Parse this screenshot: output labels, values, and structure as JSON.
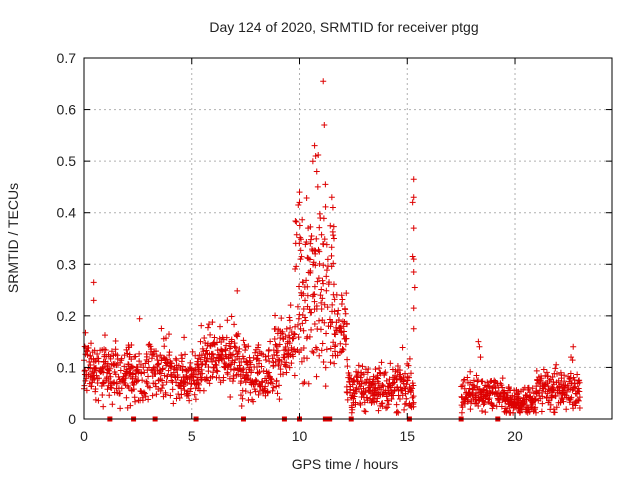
{
  "chart_data": {
    "type": "scatter",
    "title": "Day 124 of 2020, SRMTID for receiver ptgg",
    "xlabel": "GPS time / hours",
    "ylabel": "SRMTID / TECUs",
    "xlim": [
      0,
      24.5
    ],
    "ylim": [
      0,
      0.7
    ],
    "xticks": [
      "0",
      "5",
      "10",
      "15",
      "20"
    ],
    "yticks": [
      "0",
      "0.1",
      "0.2",
      "0.3",
      "0.4",
      "0.5",
      "0.6",
      "0.7"
    ],
    "grid": true,
    "marker": "+",
    "color": "#dd0000",
    "segments": [
      {
        "x_start": 0.0,
        "x_end": 1.0,
        "base": 0.095,
        "spread": 0.03
      },
      {
        "x_start": 1.0,
        "x_end": 3.0,
        "base": 0.085,
        "spread": 0.03
      },
      {
        "x_start": 3.0,
        "x_end": 4.0,
        "base": 0.1,
        "spread": 0.035
      },
      {
        "x_start": 4.0,
        "x_end": 5.3,
        "base": 0.08,
        "spread": 0.025
      },
      {
        "x_start": 5.3,
        "x_end": 7.2,
        "base": 0.12,
        "spread": 0.035
      },
      {
        "x_start": 7.2,
        "x_end": 8.8,
        "base": 0.095,
        "spread": 0.03
      },
      {
        "x_start": 8.8,
        "x_end": 9.8,
        "base": 0.13,
        "spread": 0.04
      },
      {
        "x_start": 9.8,
        "x_end": 11.6,
        "base": 0.25,
        "spread": 0.09
      },
      {
        "x_start": 11.6,
        "x_end": 12.2,
        "base": 0.17,
        "spread": 0.04
      },
      {
        "x_start": 12.2,
        "x_end": 15.3,
        "base": 0.06,
        "spread": 0.025
      },
      {
        "x_start": 17.5,
        "x_end": 19.5,
        "base": 0.05,
        "spread": 0.018
      },
      {
        "x_start": 19.5,
        "x_end": 21.0,
        "base": 0.035,
        "spread": 0.015
      },
      {
        "x_start": 21.0,
        "x_end": 23.0,
        "base": 0.055,
        "spread": 0.02
      }
    ],
    "highlights": [
      {
        "x": 0.45,
        "y": 0.265
      },
      {
        "x": 0.45,
        "y": 0.23
      },
      {
        "x": 10.0,
        "y": 0.44
      },
      {
        "x": 10.0,
        "y": 0.42
      },
      {
        "x": 10.5,
        "y": 0.34
      },
      {
        "x": 10.7,
        "y": 0.53
      },
      {
        "x": 10.75,
        "y": 0.51
      },
      {
        "x": 10.8,
        "y": 0.48
      },
      {
        "x": 10.85,
        "y": 0.45
      },
      {
        "x": 11.1,
        "y": 0.655
      },
      {
        "x": 11.15,
        "y": 0.57
      },
      {
        "x": 11.2,
        "y": 0.455
      },
      {
        "x": 11.5,
        "y": 0.43
      },
      {
        "x": 11.55,
        "y": 0.41
      },
      {
        "x": 11.6,
        "y": 0.35
      },
      {
        "x": 10.4,
        "y": 0.37
      },
      {
        "x": 15.3,
        "y": 0.465
      },
      {
        "x": 15.3,
        "y": 0.43
      },
      {
        "x": 15.25,
        "y": 0.42
      },
      {
        "x": 15.3,
        "y": 0.37
      },
      {
        "x": 15.25,
        "y": 0.315
      },
      {
        "x": 15.3,
        "y": 0.31
      },
      {
        "x": 15.3,
        "y": 0.285
      },
      {
        "x": 15.35,
        "y": 0.255
      },
      {
        "x": 15.3,
        "y": 0.215
      },
      {
        "x": 15.3,
        "y": 0.175
      },
      {
        "x": 18.3,
        "y": 0.15
      },
      {
        "x": 18.35,
        "y": 0.14
      },
      {
        "x": 18.4,
        "y": 0.12
      },
      {
        "x": 22.7,
        "y": 0.14
      },
      {
        "x": 22.6,
        "y": 0.12
      }
    ],
    "zero_markers_x": [
      1.2,
      2.3,
      3.3,
      5.2,
      7.4,
      9.3,
      10.0,
      11.2,
      11.4,
      12.4,
      15.1,
      17.5,
      19.2
    ]
  }
}
